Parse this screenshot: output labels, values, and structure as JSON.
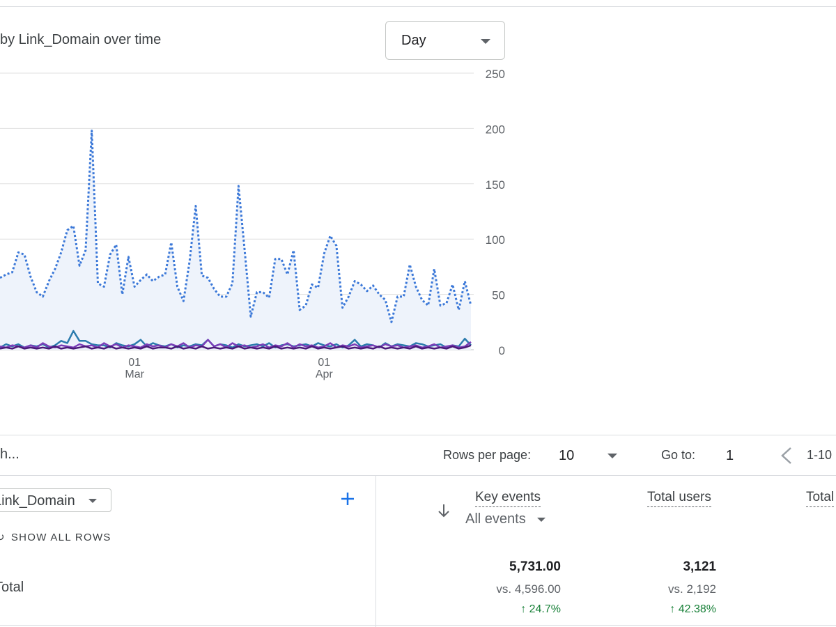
{
  "card": {
    "title": "by Link_Domain over time",
    "granularity": "Day"
  },
  "chart_data": {
    "type": "line",
    "y_axis_side": "right",
    "ylim": [
      0,
      250
    ],
    "yticks": [
      0,
      50,
      100,
      150,
      200,
      250
    ],
    "x_axis_labels": [
      {
        "day": "01",
        "month": "Mar"
      },
      {
        "day": "01",
        "month": "Apr"
      }
    ],
    "x_labels_at_index": [
      22,
      53
    ],
    "grid": true,
    "series": [
      {
        "style": "dotted",
        "color": "#3b78d8",
        "fill": "#eef3fb",
        "values": [
          65,
          68,
          70,
          88,
          86,
          66,
          52,
          48,
          62,
          73,
          88,
          108,
          112,
          76,
          90,
          198,
          60,
          57,
          86,
          95,
          50,
          84,
          57,
          63,
          68,
          62,
          66,
          68,
          97,
          57,
          44,
          80,
          130,
          67,
          65,
          55,
          48,
          48,
          60,
          148,
          90,
          30,
          52,
          52,
          47,
          82,
          82,
          68,
          90,
          36,
          40,
          59,
          56,
          87,
          103,
          94,
          38,
          48,
          62,
          59,
          53,
          58,
          50,
          45,
          25,
          48,
          48,
          77,
          57,
          45,
          40,
          73,
          40,
          42,
          59,
          36,
          62,
          40
        ]
      },
      {
        "color": "#2b7bad",
        "values": [
          2,
          5,
          3,
          5,
          2,
          4,
          3,
          5,
          2,
          4,
          8,
          6,
          17,
          8,
          8,
          5,
          4,
          4,
          2,
          6,
          4,
          3,
          5,
          9,
          3,
          6,
          4,
          3,
          5,
          2,
          4,
          3,
          5,
          4,
          9,
          3,
          5,
          4,
          2,
          5,
          3,
          4,
          5,
          3,
          6,
          2,
          4,
          5,
          3,
          4,
          5,
          3,
          6,
          4,
          3,
          5,
          2,
          4,
          9,
          3,
          5,
          4,
          2,
          6,
          3,
          5,
          4,
          3,
          6,
          5,
          3,
          4,
          5,
          2,
          4,
          3,
          10,
          4
        ]
      },
      {
        "color": "#7b3fb8",
        "values": [
          3,
          2,
          4,
          3,
          2,
          4,
          2,
          6,
          3,
          2,
          4,
          3,
          2,
          5,
          3,
          4,
          2,
          6,
          3,
          5,
          2,
          4,
          3,
          2,
          5,
          3,
          4,
          2,
          5,
          3,
          6,
          2,
          4,
          3,
          9,
          3,
          5,
          2,
          6,
          3,
          4,
          2,
          3,
          5,
          2,
          4,
          3,
          6,
          2,
          5,
          3,
          4,
          2,
          3,
          6,
          2,
          4,
          3,
          5,
          2,
          3,
          4,
          2,
          5,
          3,
          4,
          2,
          3,
          4,
          2,
          3,
          5,
          2,
          3,
          4,
          2,
          3,
          7
        ]
      },
      {
        "color": "#4a1878",
        "values": [
          1,
          2,
          1,
          3,
          1,
          2,
          1,
          2,
          1,
          3,
          1,
          2,
          1,
          2,
          3,
          1,
          2,
          1,
          3,
          1,
          2,
          1,
          2,
          1,
          3,
          1,
          2,
          2,
          1,
          3,
          1,
          2,
          1,
          3,
          1,
          2,
          1,
          2,
          1,
          3,
          1,
          2,
          1,
          2,
          1,
          3,
          1,
          2,
          1,
          2,
          1,
          3,
          1,
          2,
          1,
          2,
          3,
          1,
          2,
          1,
          2,
          1,
          3,
          1,
          2,
          1,
          2,
          1,
          3,
          1,
          2,
          1,
          2,
          1,
          3,
          1,
          2,
          4
        ]
      }
    ]
  },
  "pagination": {
    "search_placeholder": "h...",
    "rows_per_page_label": "Rows per page:",
    "rows_per_page_value": "10",
    "goto_label": "Go to:",
    "goto_value": "1",
    "range_text": "1-10"
  },
  "table": {
    "dimension": "Link_Domain",
    "show_all_rows": "SHOW ALL ROWS",
    "total_label": "Total",
    "columns": [
      {
        "label": "Key events",
        "selector": "All events",
        "total": "5,731.00",
        "compare": "vs. 4,596.00",
        "change": "↑ 24.7%"
      },
      {
        "label": "Total users",
        "total": "3,121",
        "compare": "vs. 2,192",
        "change": "↑ 42.38%"
      },
      {
        "label": "Total"
      }
    ]
  },
  "icons": {
    "dropdown": "caret-down-icon",
    "add": "plus-icon",
    "sort": "arrow-down-icon",
    "prev": "chevron-left-icon",
    "refresh": "refresh-icon"
  },
  "colors": {
    "accent": "#1a73e8",
    "positive": "#188038"
  }
}
